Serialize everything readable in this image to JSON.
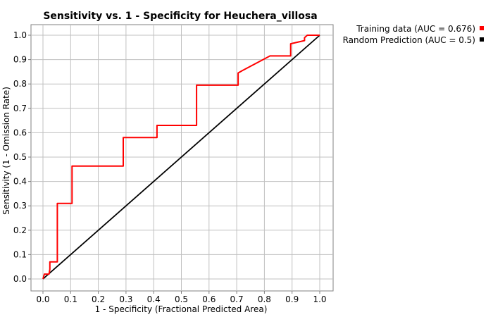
{
  "chart_data": {
    "type": "line",
    "title": "Sensitivity vs. 1 - Specificity for Heuchera_villosa",
    "xlabel": "1 - Specificity  (Fractional Predicted Area)",
    "ylabel": "Sensitivity  (1 - Omission Rate)",
    "xlim": [
      0.0,
      1.0
    ],
    "ylim": [
      0.0,
      1.0
    ],
    "xticks": [
      "0.0",
      "0.1",
      "0.2",
      "0.3",
      "0.4",
      "0.5",
      "0.6",
      "0.7",
      "0.8",
      "0.9",
      "1.0"
    ],
    "yticks": [
      "0.0",
      "0.1",
      "0.2",
      "0.3",
      "0.4",
      "0.5",
      "0.6",
      "0.7",
      "0.8",
      "0.9",
      "1.0"
    ],
    "grid": true,
    "legend_position": "top-right",
    "series": [
      {
        "name": "Training data (AUC = 0.676)",
        "color": "#ff0000",
        "x": [
          0.0,
          0.005,
          0.022,
          0.025,
          0.025,
          0.052,
          0.052,
          0.105,
          0.105,
          0.29,
          0.29,
          0.412,
          0.412,
          0.555,
          0.555,
          0.705,
          0.705,
          0.72,
          0.82,
          0.895,
          0.895,
          0.945,
          0.945,
          0.955,
          1.0
        ],
        "y": [
          0.0,
          0.02,
          0.02,
          0.04,
          0.07,
          0.07,
          0.31,
          0.31,
          0.463,
          0.463,
          0.58,
          0.58,
          0.63,
          0.63,
          0.795,
          0.795,
          0.845,
          0.855,
          0.915,
          0.915,
          0.965,
          0.978,
          0.99,
          1.0,
          1.0
        ]
      },
      {
        "name": "Random Prediction (AUC = 0.5)",
        "color": "#000000",
        "x": [
          0.0,
          1.0
        ],
        "y": [
          0.0,
          1.0
        ]
      }
    ]
  }
}
